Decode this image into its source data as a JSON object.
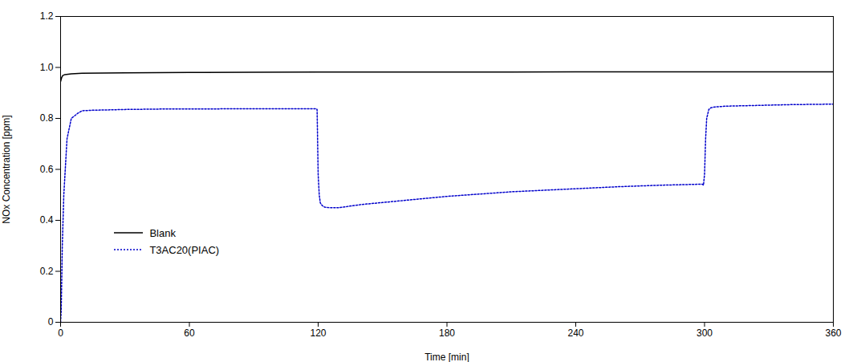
{
  "chart_data": {
    "type": "line",
    "xlabel": "Time [min]",
    "ylabel": "NOx Concentration [ppm]",
    "xlim": [
      0,
      360
    ],
    "ylim": [
      0,
      1.2
    ],
    "xticks": [
      0,
      60,
      120,
      180,
      240,
      300,
      360
    ],
    "yticks": [
      0,
      0.2,
      0.4,
      0.6,
      0.8,
      {
        "value": 1,
        "label": "1.0"
      },
      1.2
    ],
    "grid": false,
    "legend": "lower left",
    "series": [
      {
        "name": "Blank",
        "color": "#000000",
        "line_style": "solid",
        "x": [
          0,
          0.5,
          1,
          2,
          5,
          10,
          20,
          30,
          60,
          90,
          120,
          150,
          180,
          210,
          240,
          270,
          300,
          330,
          360
        ],
        "values": [
          0.945,
          0.96,
          0.968,
          0.972,
          0.975,
          0.977,
          0.978,
          0.979,
          0.98,
          0.981,
          0.982,
          0.982,
          0.982,
          0.982,
          0.983,
          0.983,
          0.983,
          0.983,
          0.983
        ]
      },
      {
        "name": "T3AC20(PIAC)",
        "color": "#0000CC",
        "line_style": "dotted",
        "x": [
          0,
          0.3,
          0.8,
          1.5,
          3,
          5,
          8,
          10,
          15,
          20,
          30,
          40,
          50,
          60,
          70,
          80,
          90,
          100,
          110,
          119,
          119.5,
          120,
          120.5,
          121,
          122,
          123,
          125,
          130,
          140,
          150,
          160,
          170,
          180,
          190,
          200,
          210,
          220,
          230,
          240,
          250,
          260,
          270,
          280,
          290,
          299,
          299.5,
          300,
          300.5,
          301,
          302,
          303,
          305,
          310,
          320,
          330,
          340,
          350,
          360
        ],
        "values": [
          0,
          0.05,
          0.3,
          0.5,
          0.72,
          0.8,
          0.82,
          0.83,
          0.832,
          0.833,
          0.835,
          0.836,
          0.837,
          0.837,
          0.837,
          0.838,
          0.838,
          0.838,
          0.838,
          0.838,
          0.835,
          0.58,
          0.5,
          0.468,
          0.457,
          0.452,
          0.45,
          0.45,
          0.462,
          0.47,
          0.478,
          0.486,
          0.494,
          0.5,
          0.506,
          0.512,
          0.516,
          0.52,
          0.524,
          0.528,
          0.532,
          0.535,
          0.538,
          0.54,
          0.542,
          0.538,
          0.58,
          0.72,
          0.8,
          0.835,
          0.842,
          0.845,
          0.848,
          0.85,
          0.852,
          0.854,
          0.855,
          0.856
        ]
      }
    ]
  }
}
